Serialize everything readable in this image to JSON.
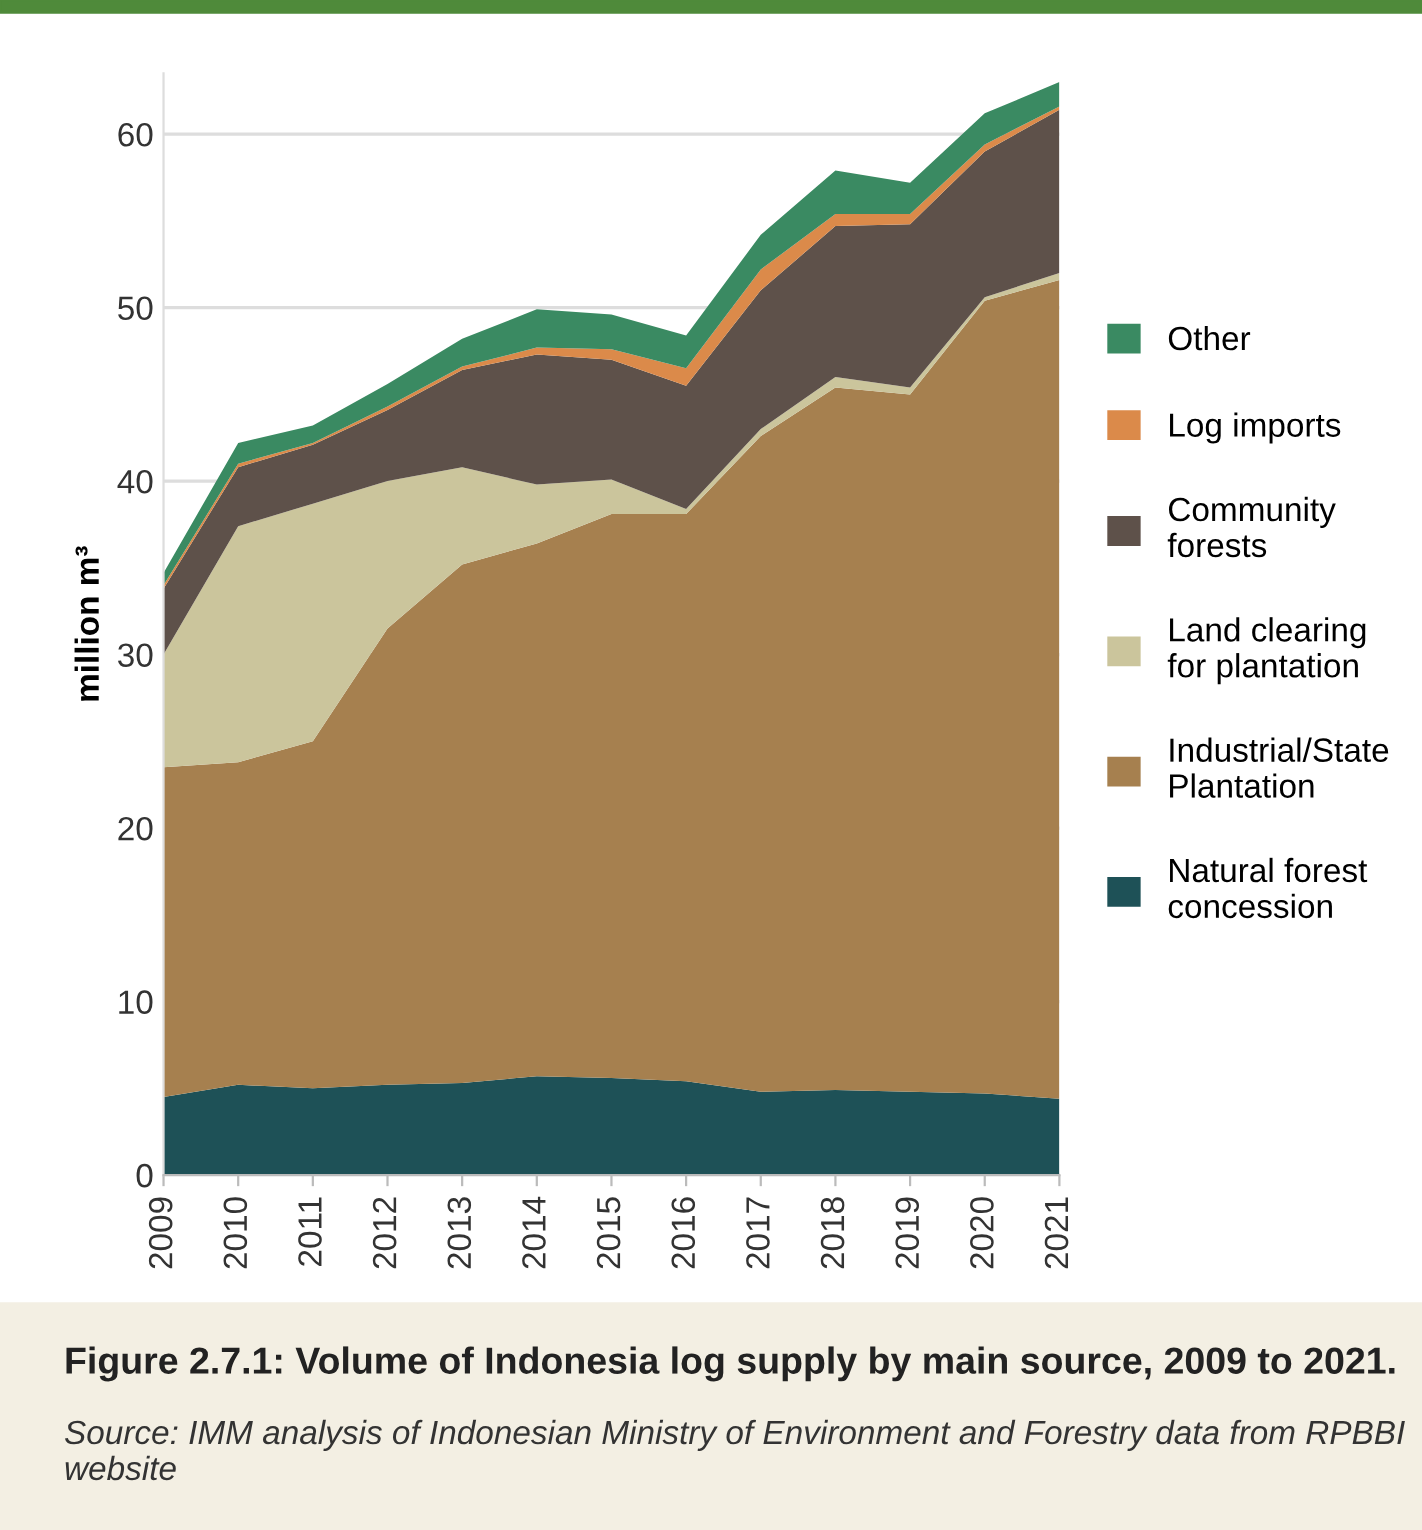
{
  "chart_data": {
    "type": "area",
    "stacked": true,
    "title": "Figure 2.7.1: Volume of Indonesia log supply by main source, 2009 to 2021.",
    "annotations": [
      "Source: IMM analysis of Indonesian Ministry of Environment and Forestry data from RPBBI website"
    ],
    "ylabel": "million m³",
    "x": [
      2009,
      2010,
      2011,
      2012,
      2013,
      2014,
      2015,
      2016,
      2017,
      2018,
      2019,
      2020,
      2021
    ],
    "xlim": [
      2009,
      2021
    ],
    "xticks": [
      2009,
      2010,
      2011,
      2012,
      2013,
      2014,
      2015,
      2016,
      2017,
      2018,
      2019,
      2020,
      2021
    ],
    "ylim": [
      0,
      63.5
    ],
    "yticks": [
      0,
      10,
      20,
      30,
      40,
      50,
      60
    ],
    "grid": "y",
    "legend": "right",
    "series": [
      {
        "name": "Natural forest\nconcession",
        "color": "#1e5157",
        "values": [
          4.5,
          5.2,
          5.0,
          5.2,
          5.3,
          5.7,
          5.6,
          5.4,
          4.8,
          4.9,
          4.8,
          4.7,
          4.4
        ]
      },
      {
        "name": "Industrial/State\nPlantation",
        "color": "#a6804f",
        "values": [
          19.0,
          18.6,
          20.0,
          26.3,
          29.9,
          30.7,
          32.5,
          32.7,
          37.8,
          40.5,
          40.2,
          45.7,
          47.2
        ]
      },
      {
        "name": "Land clearing\nfor plantation",
        "color": "#cbc59c",
        "values": [
          6.5,
          13.6,
          13.7,
          8.5,
          5.6,
          3.4,
          2.0,
          0.3,
          0.4,
          0.6,
          0.4,
          0.2,
          0.4
        ]
      },
      {
        "name": "Community\nforests",
        "color": "#5e514a",
        "values": [
          3.8,
          3.4,
          3.4,
          4.1,
          5.6,
          7.5,
          6.9,
          7.1,
          8.0,
          8.7,
          9.4,
          8.4,
          9.4
        ]
      },
      {
        "name": "Log imports",
        "color": "#db8a4a",
        "values": [
          0.2,
          0.2,
          0.1,
          0.2,
          0.2,
          0.4,
          0.6,
          1.0,
          1.2,
          0.7,
          0.6,
          0.4,
          0.2
        ]
      },
      {
        "name": "Other",
        "color": "#3a8a62",
        "values": [
          0.7,
          1.2,
          1.0,
          1.3,
          1.6,
          2.2,
          2.0,
          1.9,
          2.0,
          2.5,
          1.8,
          1.8,
          1.4
        ]
      }
    ]
  }
}
